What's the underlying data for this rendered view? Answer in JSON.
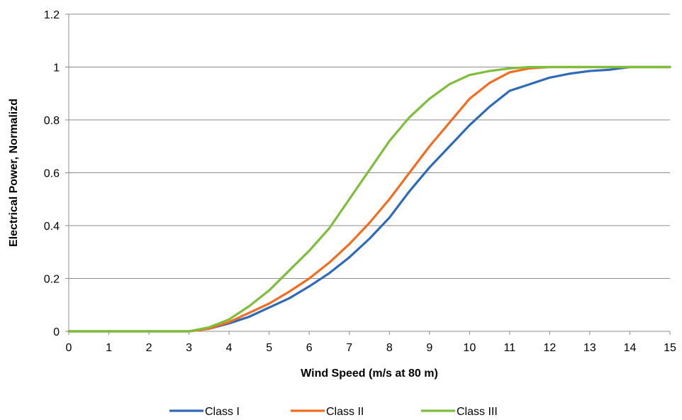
{
  "chart_data": {
    "type": "line",
    "title": "",
    "xlabel": "Wind Speed (m/s at 80 m)",
    "ylabel": "Electrical Power, Normalizd",
    "xlim": [
      0,
      15
    ],
    "ylim": [
      0,
      1.2
    ],
    "x_ticks": [
      0,
      1,
      2,
      3,
      4,
      5,
      6,
      7,
      8,
      9,
      10,
      11,
      12,
      13,
      14,
      15
    ],
    "x_tick_labels": [
      "0",
      "1",
      "2",
      "3",
      "4",
      "5",
      "6",
      "7",
      "8",
      "9",
      "10",
      "11",
      "12",
      "13",
      "14",
      "15"
    ],
    "y_ticks": [
      0,
      0.2,
      0.4,
      0.6,
      0.8,
      1,
      1.2
    ],
    "y_tick_labels": [
      "0",
      "0.2",
      "0.4",
      "0.6",
      "0.8",
      "1",
      "1.2"
    ],
    "grid": "horizontal",
    "legend_position": "bottom",
    "series": [
      {
        "name": "Class I",
        "color": "#2e6ab8",
        "x": [
          0,
          1,
          2,
          3,
          3.5,
          4,
          4.5,
          5,
          5.5,
          6,
          6.5,
          7,
          7.5,
          8,
          8.5,
          9,
          9.5,
          10,
          10.5,
          11,
          11.5,
          12,
          12.5,
          13,
          13.5,
          14,
          14.5,
          15
        ],
        "y": [
          0,
          0,
          0,
          0,
          0.01,
          0.03,
          0.055,
          0.09,
          0.125,
          0.17,
          0.22,
          0.28,
          0.35,
          0.43,
          0.53,
          0.62,
          0.7,
          0.78,
          0.85,
          0.91,
          0.935,
          0.96,
          0.975,
          0.985,
          0.99,
          1,
          1,
          1
        ]
      },
      {
        "name": "Class II",
        "color": "#f26d22",
        "x": [
          0,
          1,
          2,
          3,
          3.5,
          4,
          4.5,
          5,
          5.5,
          6,
          6.5,
          7,
          7.5,
          8,
          8.5,
          9,
          9.5,
          10,
          10.5,
          11,
          11.5,
          12,
          12.5,
          13,
          13.5,
          14,
          14.5,
          15
        ],
        "y": [
          0,
          0,
          0,
          0,
          0.01,
          0.035,
          0.07,
          0.105,
          0.15,
          0.2,
          0.26,
          0.33,
          0.41,
          0.5,
          0.6,
          0.7,
          0.79,
          0.88,
          0.94,
          0.98,
          0.995,
          1,
          1,
          1,
          1,
          1,
          1,
          1
        ]
      },
      {
        "name": "Class III",
        "color": "#7fbe3b",
        "x": [
          0,
          1,
          2,
          3,
          3.5,
          4,
          4.5,
          5,
          5.5,
          6,
          6.5,
          7,
          7.5,
          8,
          8.5,
          9,
          9.5,
          10,
          10.5,
          11,
          11.5,
          12,
          12.5,
          13,
          13.5,
          14,
          14.5,
          15
        ],
        "y": [
          0,
          0,
          0,
          0,
          0.015,
          0.045,
          0.095,
          0.155,
          0.23,
          0.305,
          0.39,
          0.5,
          0.61,
          0.72,
          0.81,
          0.88,
          0.935,
          0.97,
          0.985,
          0.995,
          1,
          1,
          1,
          1,
          1,
          1,
          1,
          1
        ]
      }
    ]
  }
}
